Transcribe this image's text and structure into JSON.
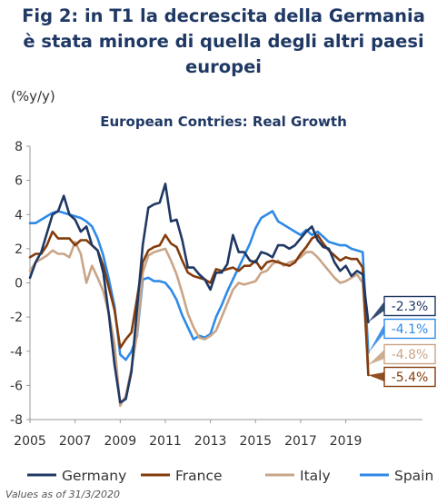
{
  "header": {
    "title_line1": "Fig 2: in T1 la decrescita della Germania",
    "title_line2": "è stata minore di quella degli altri paesi",
    "title_line3": "europei",
    "unit": "(%y/y)",
    "footnote": "Values as of 31/3/2020"
  },
  "colors": {
    "title": "#1f3864",
    "Germany": "#1f3864",
    "France": "#843c0c",
    "Italy": "#c9a587",
    "Spain": "#2e8ae6"
  },
  "chart_data": {
    "type": "line",
    "title": "European Contries: Real Growth",
    "ylabel": "(%y/y)",
    "xlabel": "",
    "ylim": [
      -8,
      8
    ],
    "xlim": [
      2005.0,
      2022.4
    ],
    "yticks": [
      8,
      6,
      4,
      2,
      0,
      -2,
      -4,
      -6,
      -8
    ],
    "xticks": [
      "2005",
      "2007",
      "2009",
      "2011",
      "2013",
      "2015",
      "2017",
      "2019"
    ],
    "grid": false,
    "legend": "bottom",
    "series": [
      {
        "name": "Germany",
        "x": [
          2005.0,
          2005.25,
          2005.5,
          2005.75,
          2006.0,
          2006.25,
          2006.5,
          2006.75,
          2007.0,
          2007.25,
          2007.5,
          2007.75,
          2008.0,
          2008.25,
          2008.5,
          2008.75,
          2009.0,
          2009.25,
          2009.5,
          2009.75,
          2010.0,
          2010.25,
          2010.5,
          2010.75,
          2011.0,
          2011.25,
          2011.5,
          2011.75,
          2012.0,
          2012.25,
          2012.5,
          2012.75,
          2013.0,
          2013.25,
          2013.5,
          2013.75,
          2014.0,
          2014.25,
          2014.5,
          2014.75,
          2015.0,
          2015.25,
          2015.5,
          2015.75,
          2016.0,
          2016.25,
          2016.5,
          2016.75,
          2017.0,
          2017.25,
          2017.5,
          2017.75,
          2018.0,
          2018.25,
          2018.5,
          2018.75,
          2019.0,
          2019.25,
          2019.5,
          2019.75,
          2020.0
        ],
        "values": [
          0.3,
          1.2,
          1.8,
          2.9,
          4.0,
          4.2,
          5.1,
          4.0,
          3.7,
          3.0,
          3.3,
          2.2,
          1.9,
          0.6,
          -1.9,
          -4.8,
          -7.0,
          -6.8,
          -5.2,
          -1.5,
          2.2,
          4.4,
          4.6,
          4.7,
          5.8,
          3.6,
          3.7,
          2.5,
          0.9,
          0.9,
          0.5,
          0.2,
          -0.4,
          0.6,
          0.6,
          1.1,
          2.8,
          1.8,
          1.8,
          1.3,
          1.2,
          1.8,
          1.7,
          1.5,
          2.2,
          2.2,
          2.0,
          2.2,
          2.6,
          3.0,
          3.3,
          2.5,
          2.1,
          2.0,
          1.2,
          0.7,
          1.0,
          0.4,
          0.7,
          0.5,
          -2.3
        ]
      },
      {
        "name": "France",
        "x": [
          2005.0,
          2005.25,
          2005.5,
          2005.75,
          2006.0,
          2006.25,
          2006.5,
          2006.75,
          2007.0,
          2007.25,
          2007.5,
          2007.75,
          2008.0,
          2008.25,
          2008.5,
          2008.75,
          2009.0,
          2009.25,
          2009.5,
          2009.75,
          2010.0,
          2010.25,
          2010.5,
          2010.75,
          2011.0,
          2011.25,
          2011.5,
          2011.75,
          2012.0,
          2012.25,
          2012.5,
          2012.75,
          2013.0,
          2013.25,
          2013.5,
          2013.75,
          2014.0,
          2014.25,
          2014.5,
          2014.75,
          2015.0,
          2015.25,
          2015.5,
          2015.75,
          2016.0,
          2016.25,
          2016.5,
          2016.75,
          2017.0,
          2017.25,
          2017.5,
          2017.75,
          2018.0,
          2018.25,
          2018.5,
          2018.75,
          2019.0,
          2019.25,
          2019.5,
          2019.75,
          2020.0
        ],
        "values": [
          1.5,
          1.7,
          1.7,
          2.2,
          3.0,
          2.6,
          2.6,
          2.6,
          2.2,
          2.5,
          2.5,
          2.2,
          1.9,
          1.0,
          -0.3,
          -1.6,
          -3.8,
          -3.3,
          -2.9,
          -0.9,
          1.2,
          1.9,
          2.1,
          2.2,
          2.8,
          2.3,
          2.1,
          1.3,
          0.6,
          0.4,
          0.3,
          0.2,
          0.0,
          0.8,
          0.7,
          0.8,
          0.9,
          0.7,
          1.0,
          1.0,
          1.3,
          0.8,
          1.2,
          1.3,
          1.2,
          1.1,
          1.0,
          1.2,
          1.7,
          2.1,
          2.6,
          2.8,
          2.3,
          1.9,
          1.6,
          1.3,
          1.5,
          1.4,
          1.4,
          0.9,
          -5.4
        ]
      },
      {
        "name": "Italy",
        "x": [
          2005.0,
          2005.25,
          2005.5,
          2005.75,
          2006.0,
          2006.25,
          2006.5,
          2006.75,
          2007.0,
          2007.25,
          2007.5,
          2007.75,
          2008.0,
          2008.25,
          2008.5,
          2008.75,
          2009.0,
          2009.25,
          2009.5,
          2009.75,
          2010.0,
          2010.25,
          2010.5,
          2010.75,
          2011.0,
          2011.25,
          2011.5,
          2011.75,
          2012.0,
          2012.25,
          2012.5,
          2012.75,
          2013.0,
          2013.25,
          2013.5,
          2013.75,
          2014.0,
          2014.25,
          2014.5,
          2014.75,
          2015.0,
          2015.25,
          2015.5,
          2015.75,
          2016.0,
          2016.25,
          2016.5,
          2016.75,
          2017.0,
          2017.25,
          2017.5,
          2017.75,
          2018.0,
          2018.25,
          2018.5,
          2018.75,
          2019.0,
          2019.25,
          2019.5,
          2019.75,
          2020.0
        ],
        "values": [
          0.7,
          1.2,
          1.4,
          1.6,
          1.9,
          1.7,
          1.7,
          1.5,
          2.4,
          1.7,
          0.0,
          1.0,
          0.3,
          -0.5,
          -1.8,
          -3.6,
          -7.2,
          -6.6,
          -5.0,
          -3.0,
          0.6,
          1.6,
          1.8,
          1.9,
          2.0,
          1.3,
          0.5,
          -0.6,
          -1.8,
          -2.6,
          -3.2,
          -3.3,
          -3.1,
          -2.8,
          -2.0,
          -1.2,
          -0.4,
          0.0,
          -0.1,
          0.0,
          0.1,
          0.6,
          0.7,
          1.1,
          1.3,
          1.0,
          1.2,
          1.3,
          1.5,
          1.8,
          1.8,
          1.5,
          1.1,
          0.7,
          0.3,
          0.0,
          0.1,
          0.3,
          0.5,
          0.0,
          -4.8
        ]
      },
      {
        "name": "Spain",
        "x": [
          2005.0,
          2005.25,
          2005.5,
          2005.75,
          2006.0,
          2006.25,
          2006.5,
          2006.75,
          2007.0,
          2007.25,
          2007.5,
          2007.75,
          2008.0,
          2008.25,
          2008.5,
          2008.75,
          2009.0,
          2009.25,
          2009.5,
          2009.75,
          2010.0,
          2010.25,
          2010.5,
          2010.75,
          2011.0,
          2011.25,
          2011.5,
          2011.75,
          2012.0,
          2012.25,
          2012.5,
          2012.75,
          2013.0,
          2013.25,
          2013.5,
          2013.75,
          2014.0,
          2014.25,
          2014.5,
          2014.75,
          2015.0,
          2015.25,
          2015.5,
          2015.75,
          2016.0,
          2016.25,
          2016.5,
          2016.75,
          2017.0,
          2017.25,
          2017.5,
          2017.75,
          2018.0,
          2018.25,
          2018.5,
          2018.75,
          2019.0,
          2019.25,
          2019.5,
          2019.75,
          2020.0
        ],
        "values": [
          3.5,
          3.5,
          3.7,
          3.9,
          4.1,
          4.2,
          4.1,
          4.0,
          3.9,
          3.8,
          3.6,
          3.3,
          2.6,
          1.6,
          0.2,
          -1.4,
          -4.2,
          -4.5,
          -4.0,
          -3.1,
          0.2,
          0.3,
          0.1,
          0.1,
          0.0,
          -0.4,
          -1.0,
          -1.9,
          -2.6,
          -3.3,
          -3.1,
          -3.2,
          -3.0,
          -2.0,
          -1.3,
          -0.5,
          0.2,
          0.9,
          1.6,
          2.3,
          3.2,
          3.8,
          4.0,
          4.2,
          3.6,
          3.4,
          3.2,
          3.0,
          2.8,
          3.1,
          2.8,
          3.0,
          2.7,
          2.4,
          2.3,
          2.2,
          2.2,
          2.0,
          1.9,
          1.8,
          -4.1
        ]
      }
    ],
    "end_labels": [
      {
        "series": "Germany",
        "label": "-2.3%"
      },
      {
        "series": "Spain",
        "label": "-4.1%"
      },
      {
        "series": "Italy",
        "label": "-4.8%"
      },
      {
        "series": "France",
        "label": "-5.4%"
      }
    ]
  }
}
